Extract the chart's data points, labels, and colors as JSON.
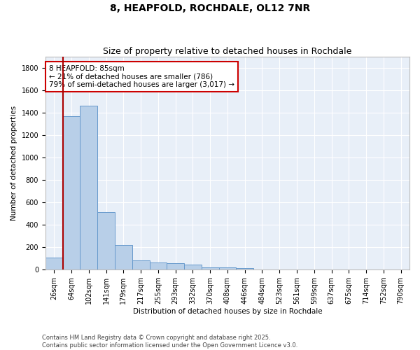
{
  "title": "8, HEAPFOLD, ROCHDALE, OL12 7NR",
  "subtitle": "Size of property relative to detached houses in Rochdale",
  "xlabel": "Distribution of detached houses by size in Rochdale",
  "ylabel": "Number of detached properties",
  "categories": [
    "26sqm",
    "64sqm",
    "102sqm",
    "141sqm",
    "179sqm",
    "217sqm",
    "255sqm",
    "293sqm",
    "332sqm",
    "370sqm",
    "408sqm",
    "446sqm",
    "484sqm",
    "523sqm",
    "561sqm",
    "599sqm",
    "637sqm",
    "675sqm",
    "714sqm",
    "752sqm",
    "790sqm"
  ],
  "values": [
    110,
    1370,
    1460,
    510,
    220,
    85,
    65,
    55,
    45,
    20,
    20,
    15,
    0,
    0,
    0,
    0,
    0,
    0,
    0,
    0,
    0
  ],
  "bar_color": "#b8cfe8",
  "bar_edge_color": "#6699cc",
  "bg_color": "#e8eff8",
  "grid_color": "#ffffff",
  "vline_color": "#aa0000",
  "annotation_text": "8 HEAPFOLD: 85sqm\n← 21% of detached houses are smaller (786)\n79% of semi-detached houses are larger (3,017) →",
  "annotation_box_color": "#cc0000",
  "ylim": [
    0,
    1900
  ],
  "yticks": [
    0,
    200,
    400,
    600,
    800,
    1000,
    1200,
    1400,
    1600,
    1800
  ],
  "footnote": "Contains HM Land Registry data © Crown copyright and database right 2025.\nContains public sector information licensed under the Open Government Licence v3.0.",
  "title_fontsize": 10,
  "subtitle_fontsize": 9,
  "label_fontsize": 7.5,
  "tick_fontsize": 7,
  "footnote_fontsize": 6
}
